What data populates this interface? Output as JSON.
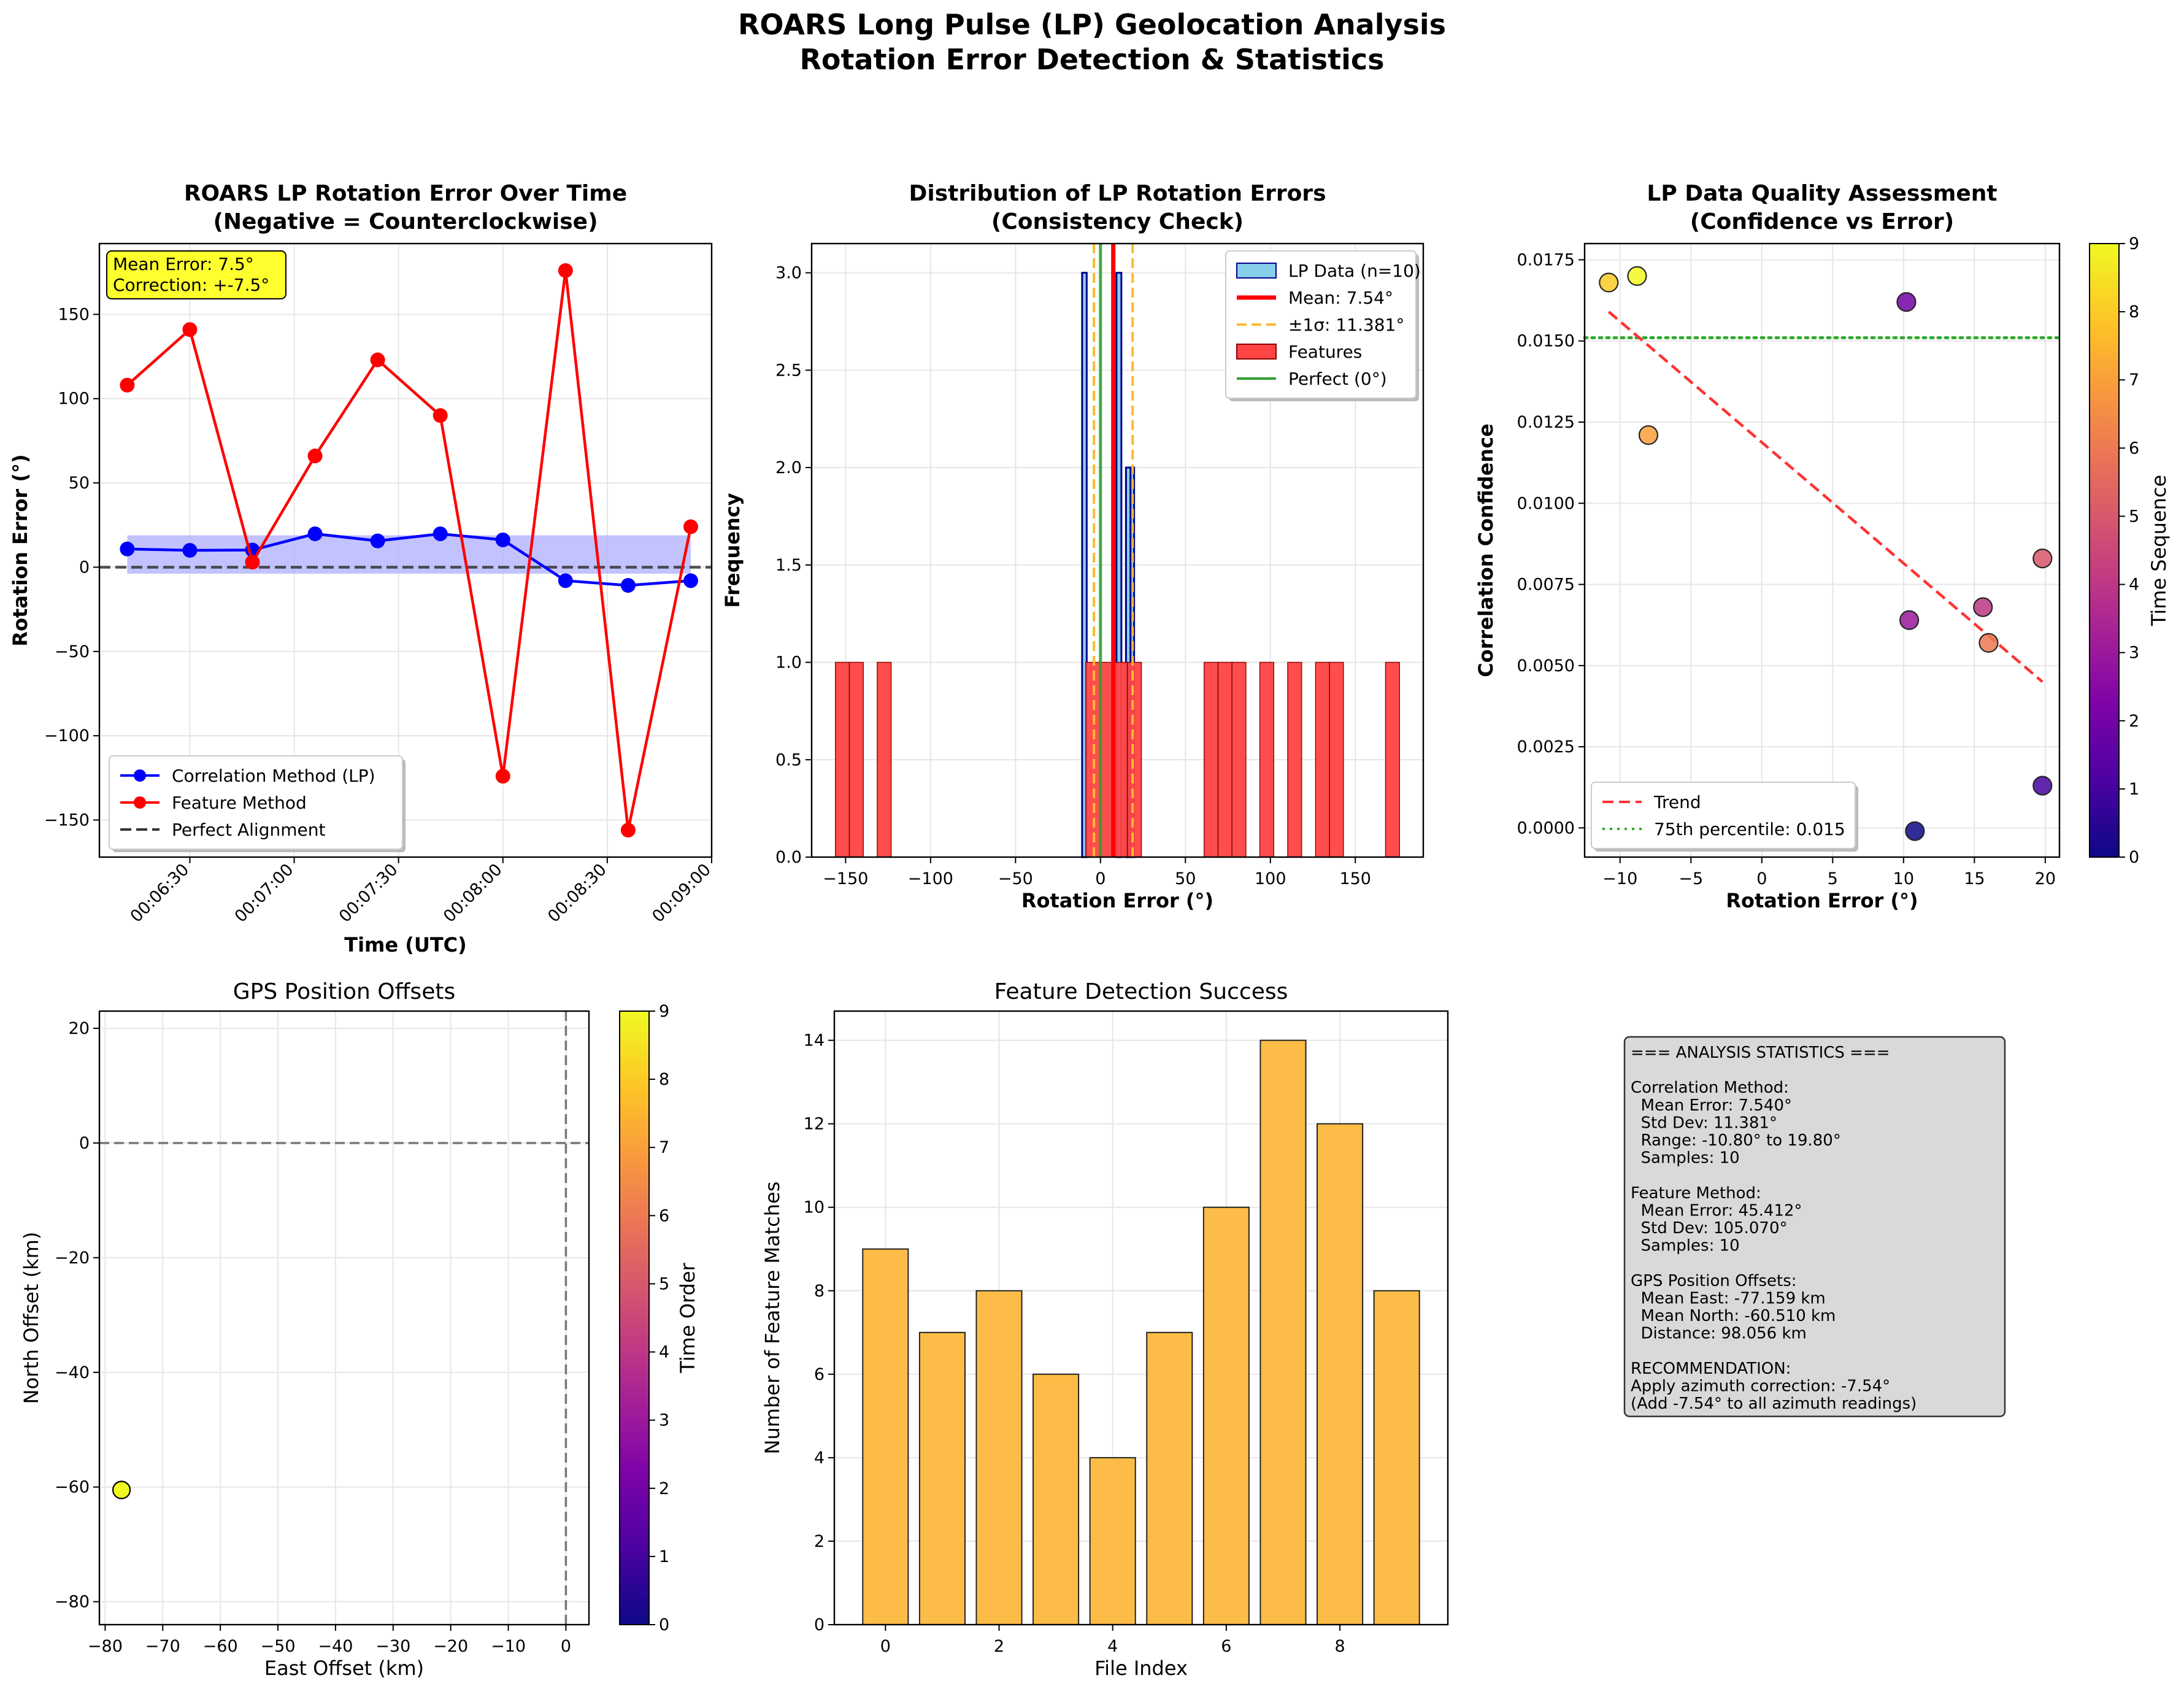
{
  "figure": {
    "title_line1": "ROARS Long Pulse (LP) Geolocation Analysis",
    "title_line2": "Rotation Error Detection & Statistics"
  },
  "colors": {
    "correlation": "#0000ff",
    "feature": "#ff0000",
    "band": "#b3b3ff",
    "hist_lp": "#87ceeb",
    "hist_features": "#ff4444",
    "mean_line": "#ff0000",
    "sigma_line": "#ffb833",
    "perfect_line": "#33a033",
    "trend": "#ff3333",
    "percentile": "#33aa33",
    "bar": "#fdbc47",
    "annotation_bg": "#ffff2e",
    "stats_bg": "#d9d9d9"
  },
  "chart_data": [
    {
      "id": "rotation_over_time",
      "type": "line",
      "title_line1": "ROARS LP Rotation Error Over Time",
      "title_line2": "(Negative = Counterclockwise)",
      "xlabel": "Time (UTC)",
      "ylabel": "Rotation Error (°)",
      "xlim": [
        "00:06:04",
        "00:09:00"
      ],
      "ylim": [
        -172,
        192
      ],
      "xticks": [
        "00:06:30",
        "00:07:00",
        "00:07:30",
        "00:08:00",
        "00:08:30",
        "00:09:00"
      ],
      "yticks": [
        -150,
        -100,
        -50,
        0,
        50,
        100,
        150
      ],
      "grid": true,
      "annotation_lines": [
        "Mean Error: 7.5°",
        "Correction: +-7.5°"
      ],
      "legend_position": "lower-left",
      "legend": [
        "Correlation Method (LP)",
        "Feature Method",
        "Perfect Alignment"
      ],
      "band": [
        -3.84,
        18.92
      ],
      "x": [
        "00:06:12",
        "00:06:30",
        "00:06:48",
        "00:07:06",
        "00:07:24",
        "00:07:42",
        "00:08:00",
        "00:08:18",
        "00:08:36",
        "00:08:54"
      ],
      "series": [
        {
          "name": "Correlation Method (LP)",
          "values": [
            10.8,
            10.0,
            10.2,
            19.8,
            15.6,
            19.8,
            16.2,
            -8.0,
            -10.8,
            -8.0
          ]
        },
        {
          "name": "Feature Method",
          "values": [
            108,
            141,
            3,
            66,
            123,
            90,
            -124,
            176,
            -156,
            24
          ]
        }
      ],
      "reference_line": {
        "name": "Perfect Alignment",
        "y": 0
      }
    },
    {
      "id": "error_distribution",
      "type": "bar",
      "title_line1": "Distribution of LP Rotation Errors",
      "title_line2": "(Consistency Check)",
      "xlabel": "Rotation Error (°)",
      "ylabel": "Frequency",
      "xlim": [
        -170,
        190
      ],
      "ylim": [
        0,
        3.15
      ],
      "xticks": [
        -150,
        -100,
        -50,
        0,
        50,
        100,
        150
      ],
      "yticks": [
        0.0,
        0.5,
        1.0,
        1.5,
        2.0,
        2.5,
        3.0
      ],
      "grid": true,
      "legend_position": "top-right",
      "legend": [
        "LP Data (n=10)",
        "Mean: 7.54°",
        "±1σ: 11.381°",
        "Features",
        "Perfect (0°)"
      ],
      "lp_bins": [
        {
          "start": -10.8,
          "end": -8.1,
          "count": 3
        },
        {
          "start": 9.4,
          "end": 12.3,
          "count": 3
        },
        {
          "start": 15.0,
          "end": 17.7,
          "count": 2
        },
        {
          "start": 17.7,
          "end": 19.8,
          "count": 2
        }
      ],
      "feature_bins": [
        {
          "start": -156,
          "end": -147.8,
          "count": 1
        },
        {
          "start": -147.8,
          "end": -139.6,
          "count": 1
        },
        {
          "start": -131.4,
          "end": -123.2,
          "count": 1
        },
        {
          "start": -8.7,
          "end": -0.5,
          "count": 1
        },
        {
          "start": -0.5,
          "end": 7.7,
          "count": 1
        },
        {
          "start": 7.7,
          "end": 15.9,
          "count": 1
        },
        {
          "start": 15.9,
          "end": 24.1,
          "count": 1
        },
        {
          "start": 61.0,
          "end": 69.2,
          "count": 1
        },
        {
          "start": 69.2,
          "end": 77.4,
          "count": 1
        },
        {
          "start": 77.4,
          "end": 85.6,
          "count": 1
        },
        {
          "start": 93.8,
          "end": 102.0,
          "count": 1
        },
        {
          "start": 110.2,
          "end": 118.4,
          "count": 1
        },
        {
          "start": 126.6,
          "end": 134.8,
          "count": 1
        },
        {
          "start": 134.8,
          "end": 143.0,
          "count": 1
        },
        {
          "start": 167.8,
          "end": 176.0,
          "count": 1
        }
      ],
      "mean": 7.54,
      "sigma": 11.381,
      "perfect": 0
    },
    {
      "id": "quality_assessment",
      "type": "scatter",
      "title_line1": "LP Data Quality Assessment",
      "title_line2": "(Confidence vs Error)",
      "xlabel": "Rotation Error (°)",
      "ylabel": "Correlation Confidence",
      "colorbar_label": "Time Sequence",
      "xlim": [
        -12.5,
        21.0
      ],
      "ylim": [
        -0.0009,
        0.018
      ],
      "xticks": [
        -10,
        -5,
        0,
        5,
        10,
        15,
        20
      ],
      "yticks": [
        "0.0000",
        "0.0025",
        "0.0050",
        "0.0075",
        "0.0100",
        "0.0125",
        "0.0150",
        "0.0175"
      ],
      "colorbar_ticks": [
        0,
        1,
        2,
        3,
        4,
        5,
        6,
        7,
        8,
        9
      ],
      "grid": true,
      "legend_position": "lower-left",
      "legend": [
        "Trend",
        "75th percentile: 0.015"
      ],
      "points": [
        {
          "x": 10.8,
          "y": -0.0001,
          "t": 0
        },
        {
          "x": 19.8,
          "y": 0.0013,
          "t": 1
        },
        {
          "x": 10.2,
          "y": 0.0162,
          "t": 2
        },
        {
          "x": 10.4,
          "y": 0.0064,
          "t": 3
        },
        {
          "x": 15.6,
          "y": 0.0068,
          "t": 4
        },
        {
          "x": 19.8,
          "y": 0.0083,
          "t": 5
        },
        {
          "x": 16.0,
          "y": 0.0057,
          "t": 6
        },
        {
          "x": -8.0,
          "y": 0.0121,
          "t": 7
        },
        {
          "x": -10.8,
          "y": 0.0168,
          "t": 8
        },
        {
          "x": -8.8,
          "y": 0.017,
          "t": 9
        }
      ],
      "trend": [
        [
          -10.8,
          0.0159
        ],
        [
          19.8,
          0.0045
        ]
      ],
      "percentile_75": 0.0151
    },
    {
      "id": "gps_offsets",
      "type": "scatter",
      "title": "GPS Position Offsets",
      "xlabel": "East Offset (km)",
      "ylabel": "North Offset (km)",
      "colorbar_label": "Time Order",
      "xlim": [
        -81,
        4
      ],
      "ylim": [
        -84,
        23
      ],
      "xticks": [
        -80,
        -70,
        -60,
        -50,
        -40,
        -30,
        -20,
        -10,
        0
      ],
      "yticks": [
        -80,
        -60,
        -40,
        -20,
        0,
        20
      ],
      "colorbar_ticks": [
        0,
        1,
        2,
        3,
        4,
        5,
        6,
        7,
        8,
        9
      ],
      "grid": true,
      "points": [
        {
          "x": -77.159,
          "y": -60.51,
          "t": 9
        }
      ]
    },
    {
      "id": "feature_detection",
      "type": "bar",
      "title": "Feature Detection Success",
      "xlabel": "File Index",
      "ylabel": "Number of Feature Matches",
      "xlim": [
        -0.9,
        9.9
      ],
      "ylim": [
        0,
        14.7
      ],
      "xticks": [
        0,
        2,
        4,
        6,
        8
      ],
      "yticks": [
        0,
        2,
        4,
        6,
        8,
        10,
        12,
        14
      ],
      "grid": true,
      "categories": [
        0,
        1,
        2,
        3,
        4,
        5,
        6,
        7,
        8,
        9
      ],
      "values": [
        9,
        7,
        8,
        6,
        4,
        7,
        10,
        14,
        12,
        8
      ]
    }
  ],
  "stats_text": [
    "=== ANALYSIS STATISTICS ===",
    "",
    "Correlation Method:",
    "  Mean Error: 7.540°",
    "  Std Dev: 11.381°",
    "  Range: -10.80° to 19.80°",
    "  Samples: 10",
    "",
    "Feature Method:",
    "  Mean Error: 45.412°",
    "  Std Dev: 105.070°",
    "  Samples: 10",
    "",
    "GPS Position Offsets:",
    "  Mean East: -77.159 km",
    "  Mean North: -60.510 km",
    "  Distance: 98.056 km",
    "",
    "RECOMMENDATION:",
    "Apply azimuth correction: -7.54°",
    "(Add -7.54° to all azimuth readings)"
  ]
}
